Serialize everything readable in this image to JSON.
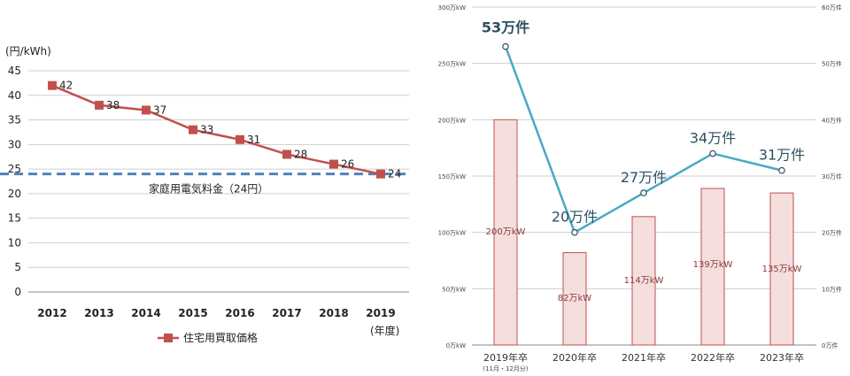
{
  "chart_data": [
    {
      "type": "line",
      "title": "",
      "ylabel": "(円/kWh)",
      "xlabel": "(年度)",
      "ylim": [
        0,
        45
      ],
      "yticks": [
        "0",
        "5",
        "10",
        "15",
        "20",
        "25",
        "30",
        "35",
        "40",
        "45"
      ],
      "categories": [
        "2012",
        "2013",
        "2014",
        "2015",
        "2016",
        "2017",
        "2018",
        "2019"
      ],
      "series": [
        {
          "name": "住宅用買取価格",
          "values": [
            42,
            38,
            37,
            33,
            31,
            28,
            26,
            24
          ],
          "color": "#c0504d"
        }
      ],
      "reference_line": {
        "value": 24,
        "label": "家庭用電気料金（24円）",
        "color": "#4f81bd",
        "style": "dashed"
      },
      "legend": "bottom",
      "grid": true
    },
    {
      "type": "bar",
      "title": "",
      "categories": [
        "2019年卒",
        "2020年卒",
        "2021年卒",
        "2022年卒",
        "2023年卒"
      ],
      "category_note": "(11月・12月分)",
      "y_left": {
        "lim": [
          0,
          300
        ],
        "ticks": [
          "0万kW",
          "50万kW",
          "100万kW",
          "150万kW",
          "200万kW",
          "250万kW",
          "300万kW"
        ]
      },
      "y_right": {
        "lim": [
          0,
          60
        ],
        "ticks": [
          "0万件",
          "10万件",
          "20万件",
          "30万件",
          "40万件",
          "50万件",
          "60万件"
        ]
      },
      "series": [
        {
          "type": "bar",
          "axis": "left",
          "values": [
            200,
            82,
            114,
            139,
            135
          ],
          "labels": [
            "200万kW",
            "82万kW",
            "114万kW",
            "139万kW",
            "135万kW"
          ],
          "color": "#f5dede",
          "stroke": "#c0504d"
        },
        {
          "type": "line",
          "axis": "right",
          "values": [
            53,
            20,
            27,
            34,
            31
          ],
          "labels": [
            "53万件",
            "20万件",
            "27万件",
            "34万件",
            "31万件"
          ],
          "color": "#4aa8c6"
        }
      ],
      "grid": true
    }
  ]
}
